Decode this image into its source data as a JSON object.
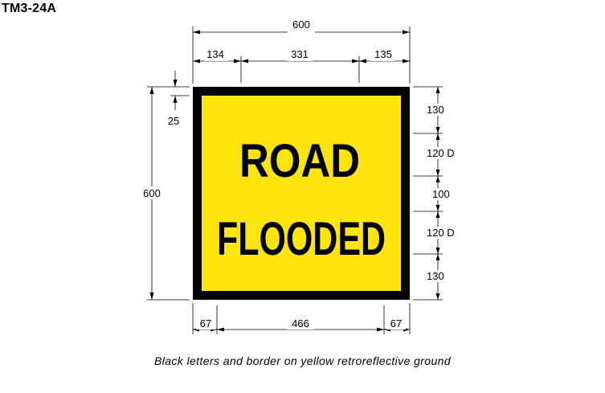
{
  "sign_code": "TM3-24A",
  "caption": "Black letters and border on yellow retroreflective ground",
  "colors": {
    "ground": "#FFE40D",
    "border": "#000000",
    "letters": "#000000"
  },
  "legend": {
    "line1": "ROAD",
    "line2": "FLOODED"
  },
  "dimensions": {
    "top_overall": "600",
    "top_left_offset": "134",
    "top_text_width": "331",
    "top_right_offset": "135",
    "left_overall": "600",
    "border_width": "25",
    "right_top_margin": "130",
    "right_line1_height": "120 D",
    "right_line_gap": "100",
    "right_line2_height": "120 D",
    "right_bottom_margin": "130",
    "bottom_left_offset": "67",
    "bottom_text_width": "466",
    "bottom_right_offset": "67"
  }
}
